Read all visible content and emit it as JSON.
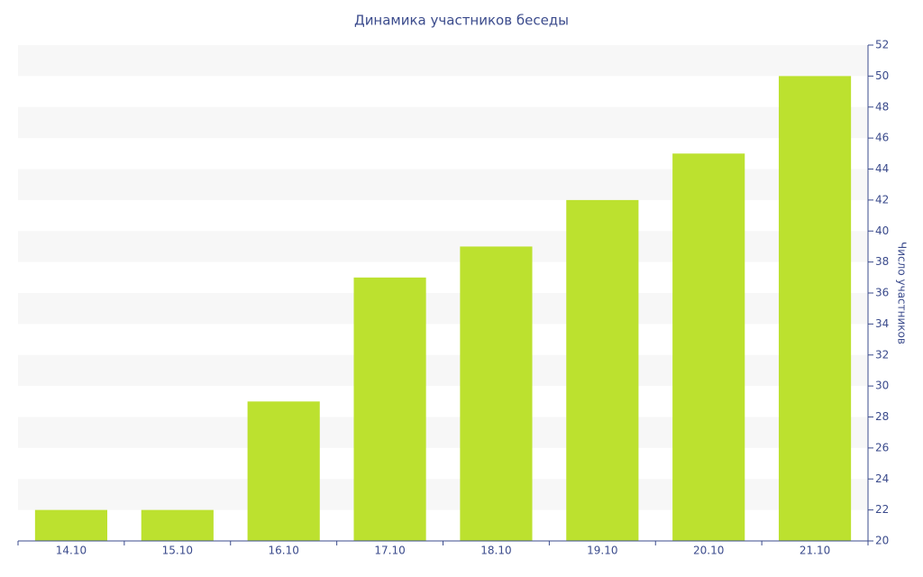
{
  "chart_data": {
    "type": "bar",
    "title": "Динамика участников беседы",
    "y_label": "Число участников",
    "categories": [
      "14.10",
      "15.10",
      "16.10",
      "17.10",
      "18.10",
      "19.10",
      "20.10",
      "21.10"
    ],
    "values": [
      22,
      22,
      29,
      37,
      39,
      42,
      45,
      50
    ],
    "color": "#bce12f",
    "ylim": [
      20,
      52
    ],
    "yticks": [
      20,
      22,
      24,
      26,
      28,
      30,
      32,
      34,
      36,
      38,
      40,
      42,
      44,
      46,
      48,
      50,
      52
    ],
    "grid": true
  }
}
